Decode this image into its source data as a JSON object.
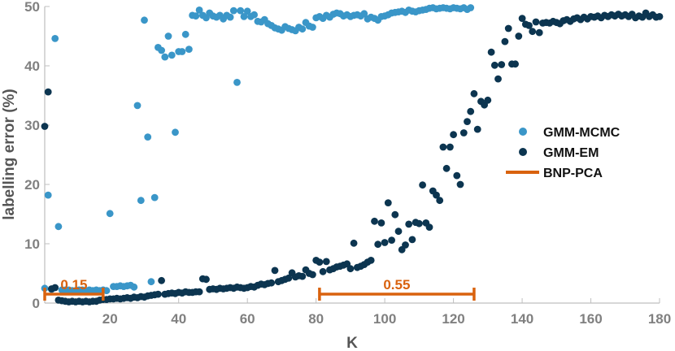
{
  "chart_data": {
    "type": "scatter",
    "xlabel": "K",
    "ylabel": "labelling error (%)",
    "xlim": [
      1,
      180
    ],
    "ylim": [
      0,
      50
    ],
    "xticks": [
      "20",
      "40",
      "60",
      "80",
      "100",
      "120",
      "140",
      "160",
      "180"
    ],
    "yticks": [
      "0",
      "10",
      "20",
      "30",
      "40",
      "50"
    ],
    "grid": false,
    "legend_position": "right",
    "colors": {
      "GMM-MCMC": "#3a96c8",
      "GMM-EM": "#0c3550",
      "BNP-PCA": "#d9620e"
    },
    "legend": [
      "GMM-MCMC",
      "GMM-EM",
      "BNP-PCA"
    ],
    "series": [
      {
        "name": "GMM-MCMC",
        "points": [
          [
            1,
            2.5
          ],
          [
            2,
            18.2
          ],
          [
            3,
            2.3
          ],
          [
            4,
            44.6
          ],
          [
            5,
            12.9
          ],
          [
            6,
            2.2
          ],
          [
            7,
            2.2
          ],
          [
            8,
            2.2
          ],
          [
            9,
            2.1
          ],
          [
            10,
            2.1
          ],
          [
            11,
            2.2
          ],
          [
            12,
            2.2
          ],
          [
            13,
            2.1
          ],
          [
            14,
            2.2
          ],
          [
            15,
            2.1
          ],
          [
            16,
            2.2
          ],
          [
            17,
            2.1
          ],
          [
            18,
            2.2
          ],
          [
            19,
            2.1
          ],
          [
            20,
            15.1
          ],
          [
            21,
            2.8
          ],
          [
            22,
            2.8
          ],
          [
            23,
            2.9
          ],
          [
            24,
            2.8
          ],
          [
            25,
            2.9
          ],
          [
            26,
            3.0
          ],
          [
            27,
            2.7
          ],
          [
            28,
            33.3
          ],
          [
            29,
            17.3
          ],
          [
            30,
            47.7
          ],
          [
            31,
            28.0
          ],
          [
            32,
            3.6
          ],
          [
            33,
            17.8
          ],
          [
            34,
            43.1
          ],
          [
            35,
            42.6
          ],
          [
            36,
            41.5
          ],
          [
            37,
            45.0
          ],
          [
            38,
            41.8
          ],
          [
            39,
            28.8
          ],
          [
            40,
            42.4
          ],
          [
            41,
            42.4
          ],
          [
            42,
            45.3
          ],
          [
            43,
            42.8
          ],
          [
            44,
            48.5
          ],
          [
            45,
            48.4
          ],
          [
            46,
            49.4
          ],
          [
            47,
            48.5
          ],
          [
            48,
            48.1
          ],
          [
            49,
            48.9
          ],
          [
            50,
            48.4
          ],
          [
            51,
            48.2
          ],
          [
            52,
            48.5
          ],
          [
            53,
            47.9
          ],
          [
            54,
            48.5
          ],
          [
            55,
            48.2
          ],
          [
            56,
            49.3
          ],
          [
            57,
            37.2
          ],
          [
            58,
            49.3
          ],
          [
            59,
            48.3
          ],
          [
            60,
            49.2
          ],
          [
            61,
            48.3
          ],
          [
            62,
            48.6
          ],
          [
            63,
            47.5
          ],
          [
            64,
            47.4
          ],
          [
            65,
            47.8
          ],
          [
            66,
            47.1
          ],
          [
            67,
            46.8
          ],
          [
            68,
            46.4
          ],
          [
            69,
            46.2
          ],
          [
            70,
            46.0
          ],
          [
            71,
            46.6
          ],
          [
            72,
            46.3
          ],
          [
            73,
            46.1
          ],
          [
            74,
            45.9
          ],
          [
            75,
            46.5
          ],
          [
            76,
            46.2
          ],
          [
            77,
            47.3
          ],
          [
            78,
            46.7
          ],
          [
            79,
            46.5
          ],
          [
            80,
            48.1
          ],
          [
            81,
            48.3
          ],
          [
            82,
            48.0
          ],
          [
            83,
            48.5
          ],
          [
            84,
            48.2
          ],
          [
            85,
            48.7
          ],
          [
            86,
            48.9
          ],
          [
            87,
            48.8
          ],
          [
            88,
            48.4
          ],
          [
            89,
            48.6
          ],
          [
            90,
            48.3
          ],
          [
            91,
            48.5
          ],
          [
            92,
            48.6
          ],
          [
            93,
            48.4
          ],
          [
            94,
            48.8
          ],
          [
            95,
            47.9
          ],
          [
            96,
            48.2
          ],
          [
            97,
            48.0
          ],
          [
            98,
            47.7
          ],
          [
            99,
            48.3
          ],
          [
            100,
            48.4
          ],
          [
            101,
            48.6
          ],
          [
            102,
            48.9
          ],
          [
            103,
            49.0
          ],
          [
            104,
            49.1
          ],
          [
            105,
            49.2
          ],
          [
            106,
            49.0
          ],
          [
            107,
            49.4
          ],
          [
            108,
            49.2
          ],
          [
            109,
            49.1
          ],
          [
            110,
            49.3
          ],
          [
            111,
            49.4
          ],
          [
            112,
            49.5
          ],
          [
            113,
            49.7
          ],
          [
            114,
            49.8
          ],
          [
            115,
            49.6
          ],
          [
            116,
            49.7
          ],
          [
            117,
            49.8
          ],
          [
            118,
            49.7
          ],
          [
            119,
            49.6
          ],
          [
            120,
            49.8
          ],
          [
            121,
            49.7
          ],
          [
            122,
            49.6
          ],
          [
            123,
            49.8
          ],
          [
            124,
            49.5
          ],
          [
            125,
            49.8
          ]
        ]
      },
      {
        "name": "GMM-EM",
        "points": [
          [
            1,
            29.8
          ],
          [
            2,
            35.6
          ],
          [
            3,
            2.4
          ],
          [
            4,
            2.6
          ],
          [
            5,
            0.5
          ],
          [
            6,
            0.4
          ],
          [
            7,
            0.3
          ],
          [
            8,
            0.2
          ],
          [
            9,
            0.3
          ],
          [
            10,
            0.2
          ],
          [
            11,
            0.3
          ],
          [
            12,
            0.2
          ],
          [
            13,
            0.3
          ],
          [
            14,
            0.2
          ],
          [
            15,
            0.3
          ],
          [
            16,
            0.3
          ],
          [
            17,
            0.5
          ],
          [
            18,
            0.6
          ],
          [
            19,
            0.6
          ],
          [
            20,
            0.7
          ],
          [
            21,
            0.7
          ],
          [
            22,
            0.8
          ],
          [
            23,
            0.7
          ],
          [
            24,
            0.8
          ],
          [
            25,
            0.9
          ],
          [
            26,
            0.8
          ],
          [
            27,
            1.0
          ],
          [
            28,
            0.9
          ],
          [
            29,
            1.1
          ],
          [
            30,
            1.0
          ],
          [
            31,
            1.2
          ],
          [
            32,
            1.3
          ],
          [
            33,
            1.4
          ],
          [
            34,
            1.5
          ],
          [
            35,
            3.8
          ],
          [
            36,
            1.5
          ],
          [
            37,
            1.6
          ],
          [
            38,
            1.7
          ],
          [
            39,
            1.6
          ],
          [
            40,
            1.8
          ],
          [
            41,
            1.7
          ],
          [
            42,
            1.9
          ],
          [
            43,
            1.8
          ],
          [
            44,
            1.8
          ],
          [
            45,
            1.9
          ],
          [
            46,
            1.9
          ],
          [
            47,
            4.1
          ],
          [
            48,
            4.0
          ],
          [
            49,
            2.3
          ],
          [
            50,
            2.4
          ],
          [
            51,
            2.3
          ],
          [
            52,
            2.5
          ],
          [
            53,
            2.4
          ],
          [
            54,
            2.5
          ],
          [
            55,
            2.6
          ],
          [
            56,
            2.5
          ],
          [
            57,
            2.7
          ],
          [
            58,
            2.6
          ],
          [
            59,
            2.5
          ],
          [
            60,
            2.6
          ],
          [
            61,
            2.8
          ],
          [
            62,
            2.7
          ],
          [
            63,
            3.0
          ],
          [
            64,
            3.2
          ],
          [
            65,
            3.1
          ],
          [
            66,
            3.3
          ],
          [
            67,
            3.4
          ],
          [
            68,
            5.5
          ],
          [
            69,
            3.6
          ],
          [
            70,
            3.8
          ],
          [
            71,
            4.0
          ],
          [
            72,
            4.2
          ],
          [
            73,
            5.1
          ],
          [
            74,
            4.4
          ],
          [
            75,
            4.6
          ],
          [
            76,
            4.5
          ],
          [
            77,
            5.6
          ],
          [
            78,
            5.0
          ],
          [
            79,
            4.8
          ],
          [
            80,
            7.2
          ],
          [
            81,
            6.9
          ],
          [
            82,
            5.3
          ],
          [
            83,
            7.0
          ],
          [
            84,
            5.6
          ],
          [
            85,
            5.8
          ],
          [
            86,
            6.1
          ],
          [
            87,
            6.2
          ],
          [
            88,
            6.4
          ],
          [
            89,
            6.6
          ],
          [
            90,
            5.8
          ],
          [
            91,
            10.1
          ],
          [
            92,
            6.0
          ],
          [
            93,
            6.2
          ],
          [
            94,
            6.5
          ],
          [
            95,
            6.9
          ],
          [
            96,
            7.2
          ],
          [
            97,
            13.8
          ],
          [
            98,
            9.9
          ],
          [
            99,
            13.5
          ],
          [
            100,
            10.2
          ],
          [
            101,
            16.9
          ],
          [
            102,
            10.6
          ],
          [
            103,
            14.9
          ],
          [
            104,
            12.1
          ],
          [
            105,
            9.0
          ],
          [
            106,
            9.8
          ],
          [
            107,
            13.3
          ],
          [
            108,
            10.7
          ],
          [
            109,
            13.6
          ],
          [
            110,
            13.4
          ],
          [
            111,
            19.9
          ],
          [
            112,
            13.5
          ],
          [
            113,
            12.8
          ],
          [
            114,
            18.9
          ],
          [
            115,
            18.2
          ],
          [
            116,
            17.3
          ],
          [
            117,
            26.3
          ],
          [
            118,
            22.7
          ],
          [
            119,
            26.3
          ],
          [
            120,
            28.4
          ],
          [
            121,
            21.5
          ],
          [
            122,
            20.0
          ],
          [
            123,
            28.7
          ],
          [
            124,
            30.6
          ],
          [
            125,
            32.3
          ],
          [
            126,
            35.3
          ],
          [
            127,
            29.3
          ],
          [
            128,
            34.0
          ],
          [
            129,
            33.4
          ],
          [
            130,
            34.2
          ],
          [
            131,
            42.3
          ],
          [
            132,
            40.1
          ],
          [
            133,
            37.8
          ],
          [
            134,
            40.2
          ],
          [
            135,
            44.1
          ],
          [
            136,
            46.3
          ],
          [
            137,
            40.3
          ],
          [
            138,
            40.3
          ],
          [
            139,
            45.0
          ],
          [
            140,
            48.0
          ],
          [
            141,
            47.0
          ],
          [
            142,
            46.8
          ],
          [
            143,
            45.8
          ],
          [
            144,
            47.4
          ],
          [
            145,
            45.6
          ],
          [
            146,
            47.2
          ],
          [
            147,
            47.3
          ],
          [
            148,
            47.2
          ],
          [
            149,
            47.5
          ],
          [
            150,
            47.3
          ],
          [
            151,
            47.1
          ],
          [
            152,
            47.6
          ],
          [
            153,
            47.8
          ],
          [
            154,
            47.5
          ],
          [
            155,
            47.9
          ],
          [
            156,
            48.1
          ],
          [
            157,
            47.8
          ],
          [
            158,
            48.2
          ],
          [
            159,
            47.9
          ],
          [
            160,
            48.3
          ],
          [
            161,
            48.2
          ],
          [
            162,
            48.4
          ],
          [
            163,
            48.1
          ],
          [
            164,
            48.5
          ],
          [
            165,
            48.3
          ],
          [
            166,
            48.6
          ],
          [
            167,
            48.4
          ],
          [
            168,
            48.7
          ],
          [
            169,
            48.4
          ],
          [
            170,
            48.6
          ],
          [
            171,
            48.3
          ],
          [
            172,
            48.7
          ],
          [
            173,
            48.1
          ],
          [
            174,
            48.4
          ],
          [
            175,
            48.2
          ],
          [
            176,
            48.9
          ],
          [
            177,
            48.3
          ],
          [
            178,
            48.6
          ],
          [
            179,
            48.2
          ],
          [
            180,
            48.3
          ]
        ]
      }
    ],
    "intervals": [
      {
        "series": "BNP-PCA",
        "x_start": 1,
        "x_end": 18,
        "y": 1.5,
        "label": "0.15"
      },
      {
        "series": "BNP-PCA",
        "x_start": 81,
        "x_end": 126,
        "y": 1.5,
        "label": "0.55"
      }
    ]
  }
}
